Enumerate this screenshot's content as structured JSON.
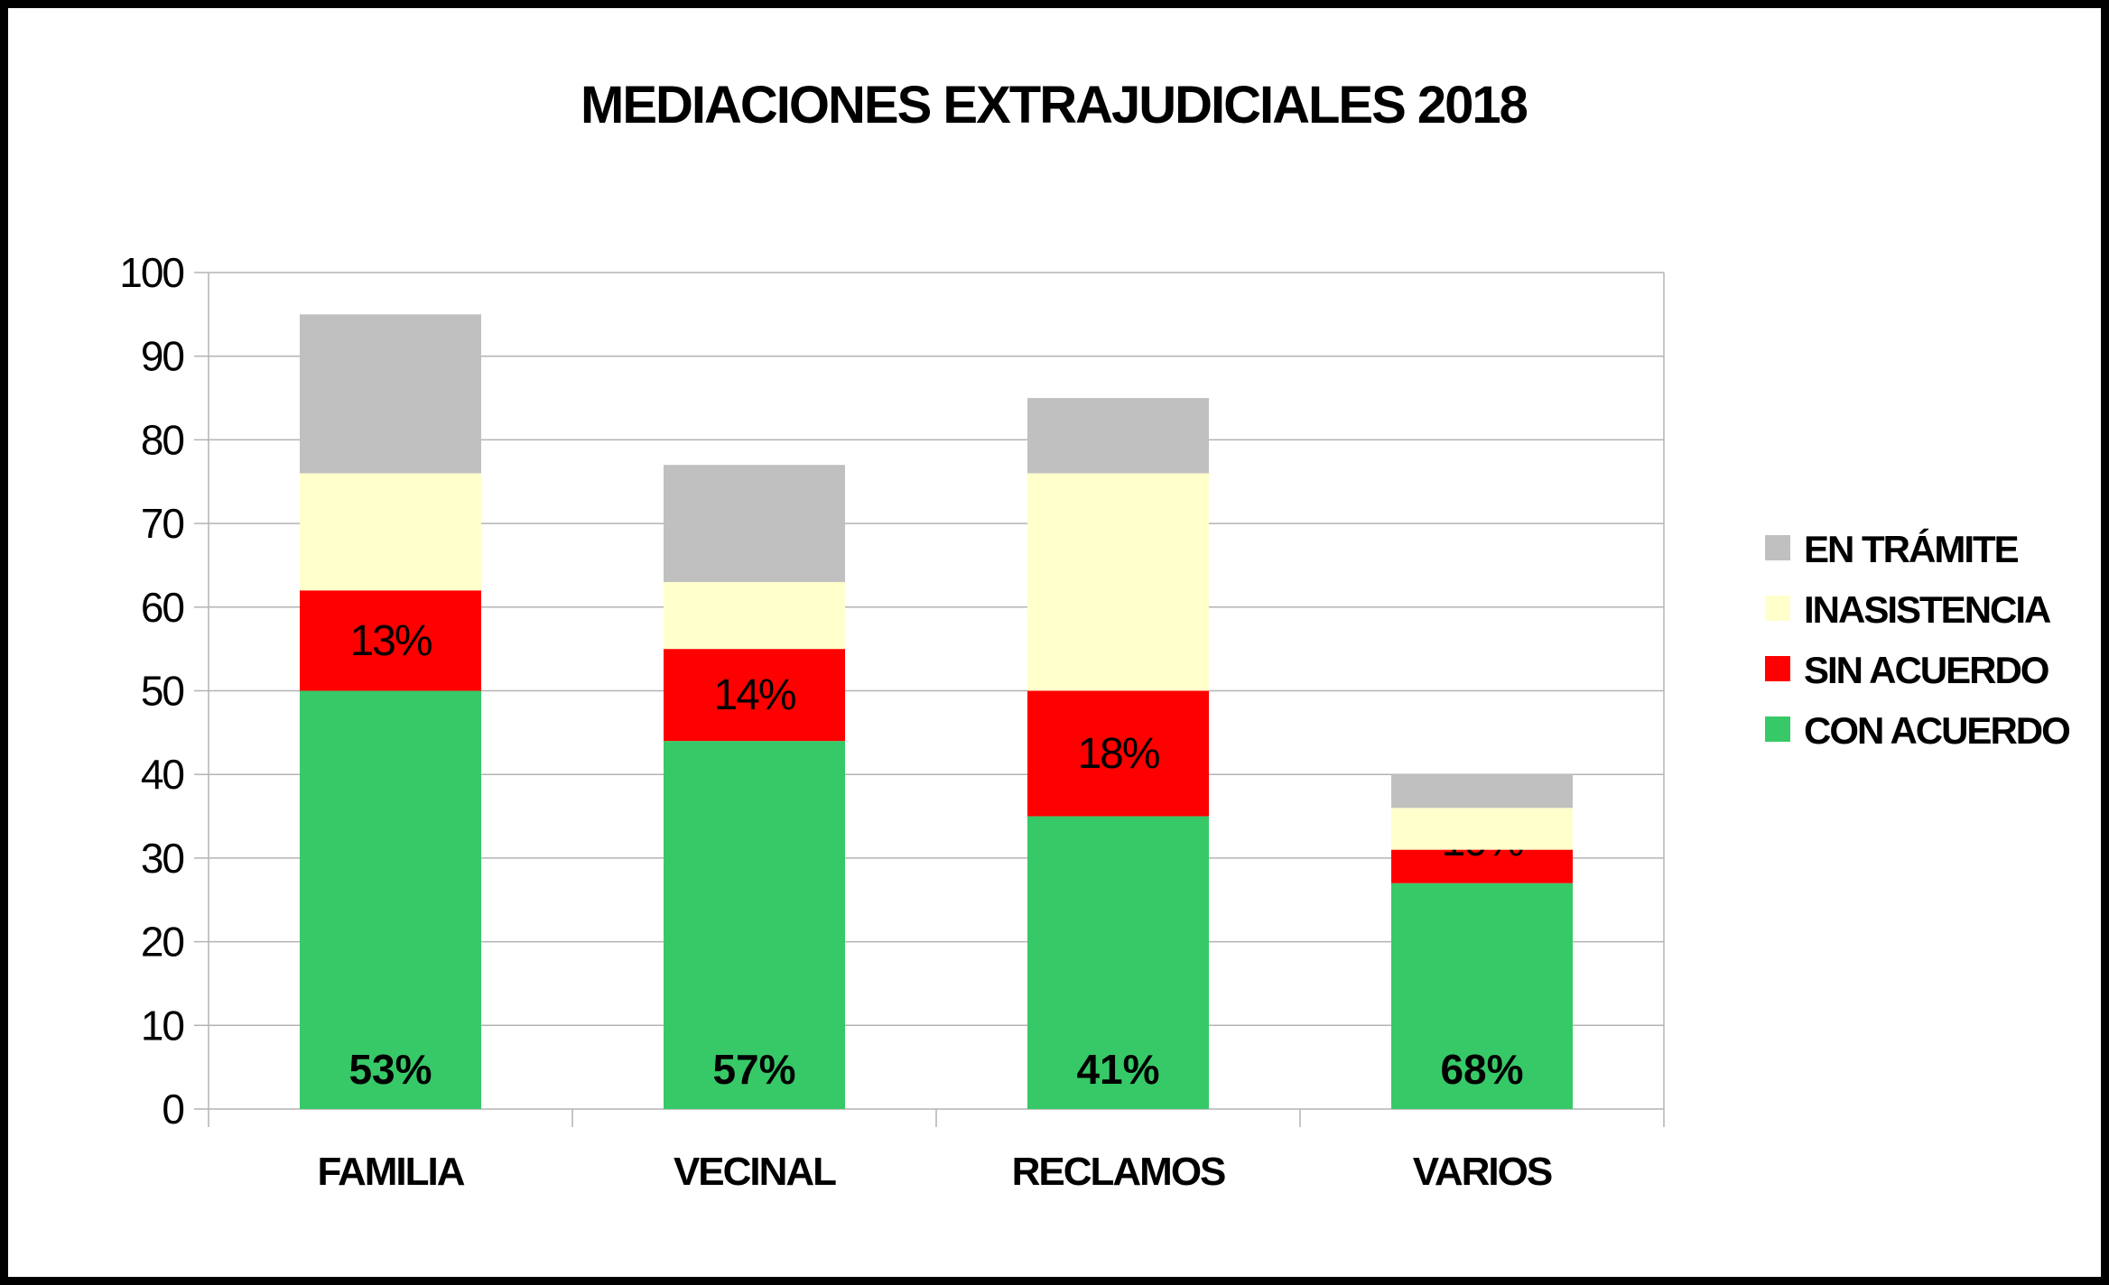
{
  "chart_data": {
    "type": "bar",
    "stacked": true,
    "title": "MEDIACIONES EXTRAJUDICIALES 2018",
    "xlabel": "",
    "ylabel": "",
    "ylim": [
      0,
      100
    ],
    "yticks": [
      0,
      10,
      20,
      30,
      40,
      50,
      60,
      70,
      80,
      90,
      100
    ],
    "grid": true,
    "legend_position": "right",
    "categories": [
      "FAMILIA",
      "VECINAL",
      "RECLAMOS",
      "VARIOS"
    ],
    "series": [
      {
        "name": "CON ACUERDO",
        "color": "#37c968",
        "values": [
          50,
          44,
          35,
          27
        ],
        "labels": [
          "53%",
          "57%",
          "41%",
          "68%"
        ]
      },
      {
        "name": "SIN ACUERDO",
        "color": "#ff0000",
        "values": [
          12,
          11,
          15,
          4
        ],
        "labels": [
          "13%",
          "14%",
          "18%",
          "10%"
        ]
      },
      {
        "name": "INASISTENCIA",
        "color": "#ffffcc",
        "values": [
          14,
          8,
          26,
          5
        ]
      },
      {
        "name": "EN TRÁMITE",
        "color": "#c0c0c0",
        "values": [
          19,
          14,
          9,
          4
        ]
      }
    ]
  }
}
